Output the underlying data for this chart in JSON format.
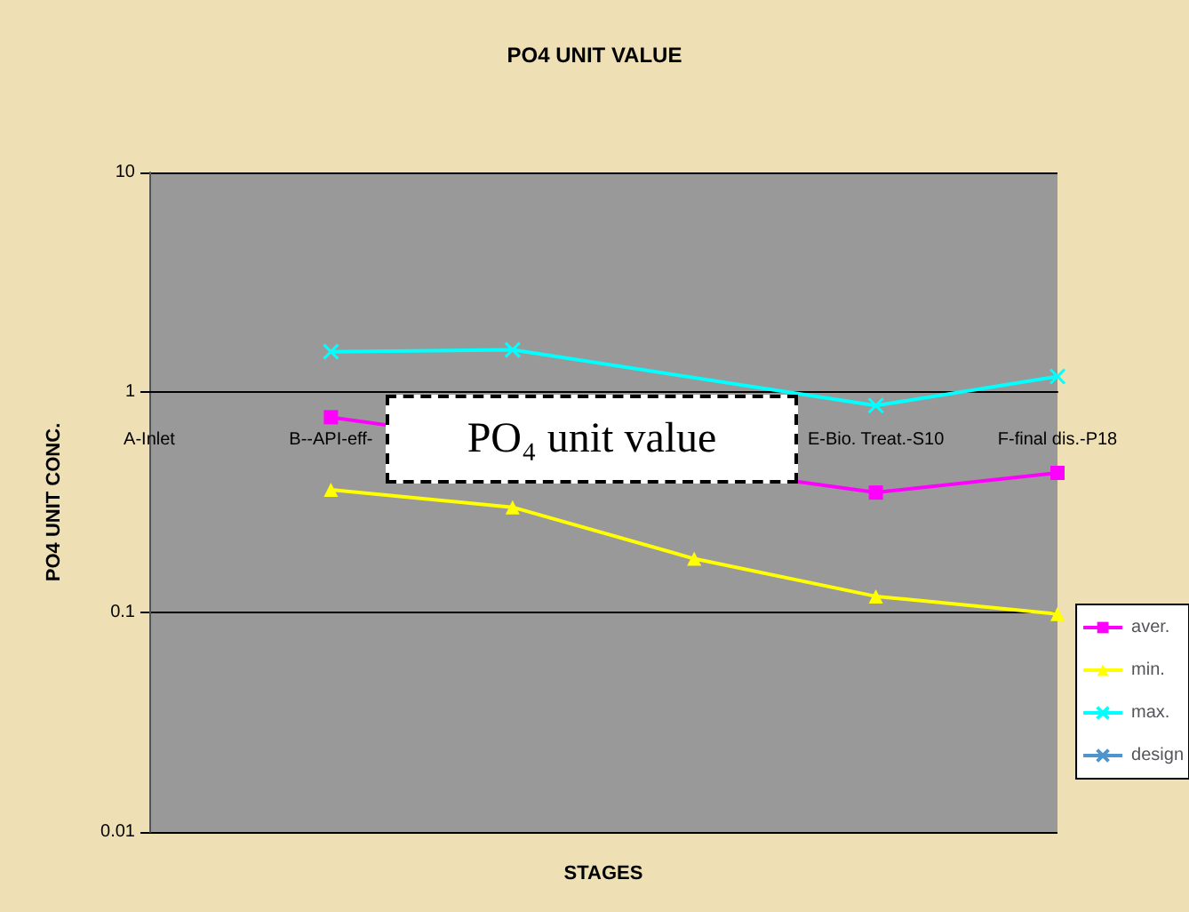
{
  "chart_data": {
    "type": "line",
    "title": "PO4 UNIT VALUE",
    "xlabel": "STAGES",
    "ylabel": "PO4 UNIT CONC.",
    "categories": [
      "A-Inlet",
      "B--API-eff-",
      null,
      null,
      "E-Bio. Treat.-S10",
      "F-final dis.-P18"
    ],
    "series": [
      {
        "name": "aver.",
        "color": "#ff00ff",
        "marker": "square",
        "values": [
          null,
          0.77,
          null,
          null,
          0.35,
          0.43
        ]
      },
      {
        "name": "min.",
        "color": "#ffff00",
        "marker": "triangle",
        "values": [
          null,
          0.36,
          0.3,
          0.175,
          0.118,
          0.098
        ]
      },
      {
        "name": "max.",
        "color": "#00ffff",
        "marker": "cross",
        "values": [
          null,
          1.53,
          1.56,
          null,
          0.87,
          1.18
        ]
      },
      {
        "name": "design",
        "color": "#4f94cd",
        "marker": "cross",
        "values": [
          null,
          null,
          null,
          null,
          null,
          null
        ]
      }
    ],
    "log": "y",
    "ylim": [
      0.01,
      10
    ],
    "yticks": [
      0.01,
      0.1,
      1,
      10
    ],
    "grid": "y",
    "legend": "right",
    "annotations": [
      "PO₄ unit value"
    ]
  }
}
